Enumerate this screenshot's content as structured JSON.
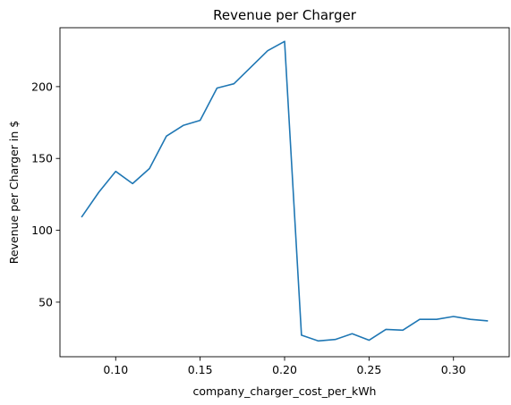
{
  "chart_data": {
    "type": "line",
    "title": "Revenue per Charger",
    "xlabel": "company_charger_cost_per_kWh",
    "ylabel": "Revenue per Charger in $",
    "xlim": [
      0.067,
      0.333
    ],
    "ylim": [
      12,
      241
    ],
    "x_ticks": [
      0.1,
      0.15,
      0.2,
      0.25,
      0.3
    ],
    "x_tick_labels": [
      "0.10",
      "0.15",
      "0.20",
      "0.25",
      "0.30"
    ],
    "y_ticks": [
      50,
      100,
      150,
      200
    ],
    "y_tick_labels": [
      "50",
      "100",
      "150",
      "200"
    ],
    "grid": false,
    "color": "#1f77b4",
    "series": [
      {
        "x": [
          0.08,
          0.09,
          0.1,
          0.11,
          0.12,
          0.13,
          0.14,
          0.15,
          0.16,
          0.17,
          0.18,
          0.19,
          0.2,
          0.21,
          0.22,
          0.23,
          0.24,
          0.25,
          0.26,
          0.27,
          0.28,
          0.29,
          0.3,
          0.31,
          0.32
        ],
        "values": [
          109.5,
          126.5,
          141,
          132.5,
          143,
          165.5,
          173,
          176.5,
          199,
          202,
          213.5,
          225,
          231.5,
          27,
          23,
          24,
          28,
          23.5,
          31,
          30.5,
          38,
          38,
          40,
          38,
          37
        ]
      }
    ]
  }
}
